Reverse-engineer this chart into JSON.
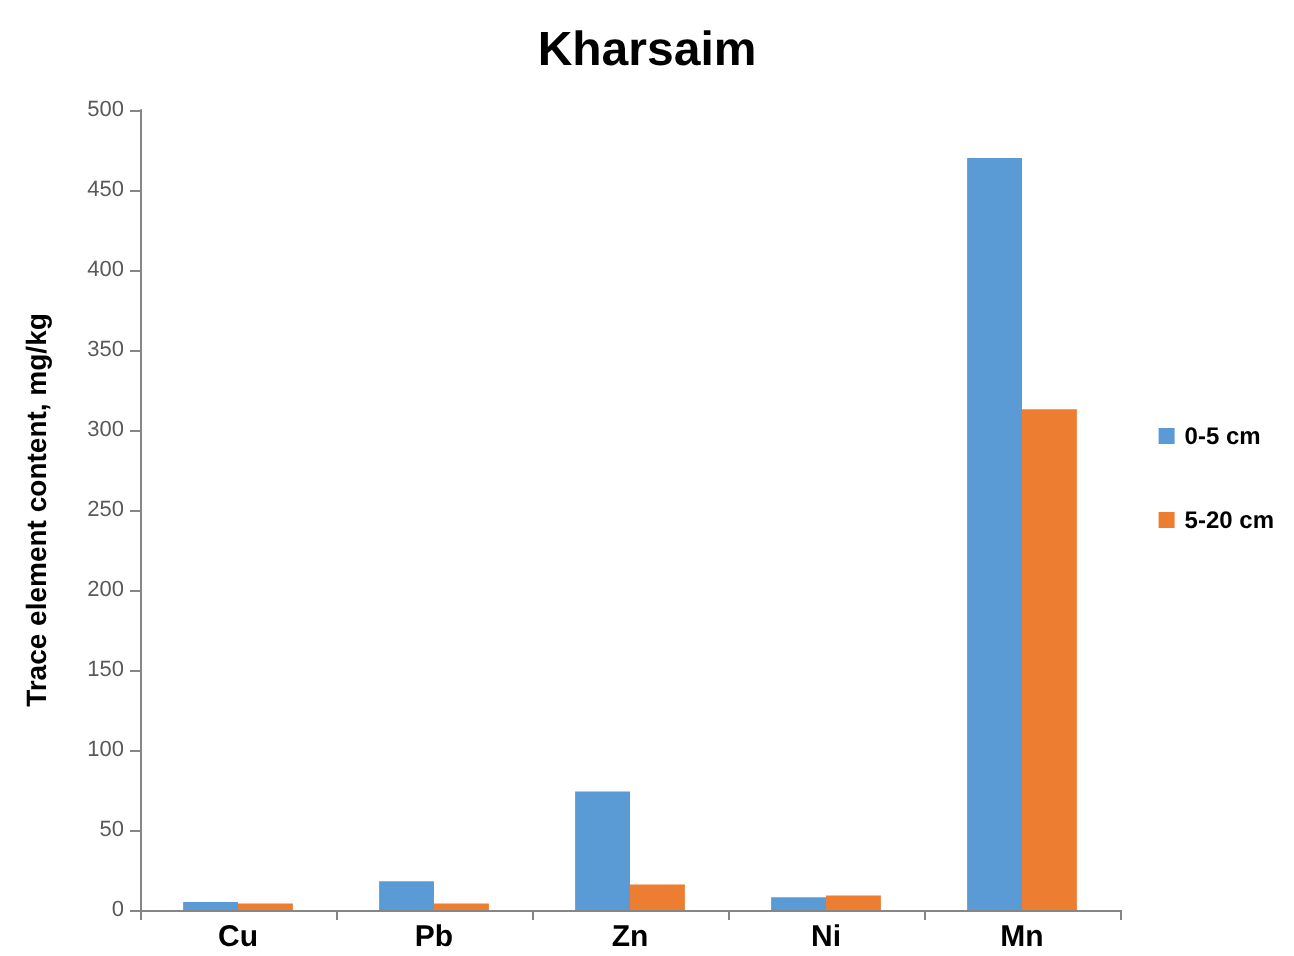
{
  "chart_data": {
    "type": "bar",
    "title": "Kharsaim",
    "ylabel": "Trace element content, mg/kg",
    "categories": [
      "Cu",
      "Pb",
      "Zn",
      "Ni",
      "Mn"
    ],
    "series": [
      {
        "name": "0-5 cm",
        "color": "#5b9bd5",
        "values": [
          5,
          18,
          74,
          8,
          470
        ]
      },
      {
        "name": "5-20 cm",
        "color": "#ed7d31",
        "values": [
          4,
          4,
          16,
          9,
          313
        ]
      }
    ],
    "ylim": [
      0,
      500
    ],
    "yticks": [
      0,
      50,
      100,
      150,
      200,
      250,
      300,
      350,
      400,
      450,
      500
    ],
    "grid": false,
    "legend": "right"
  }
}
